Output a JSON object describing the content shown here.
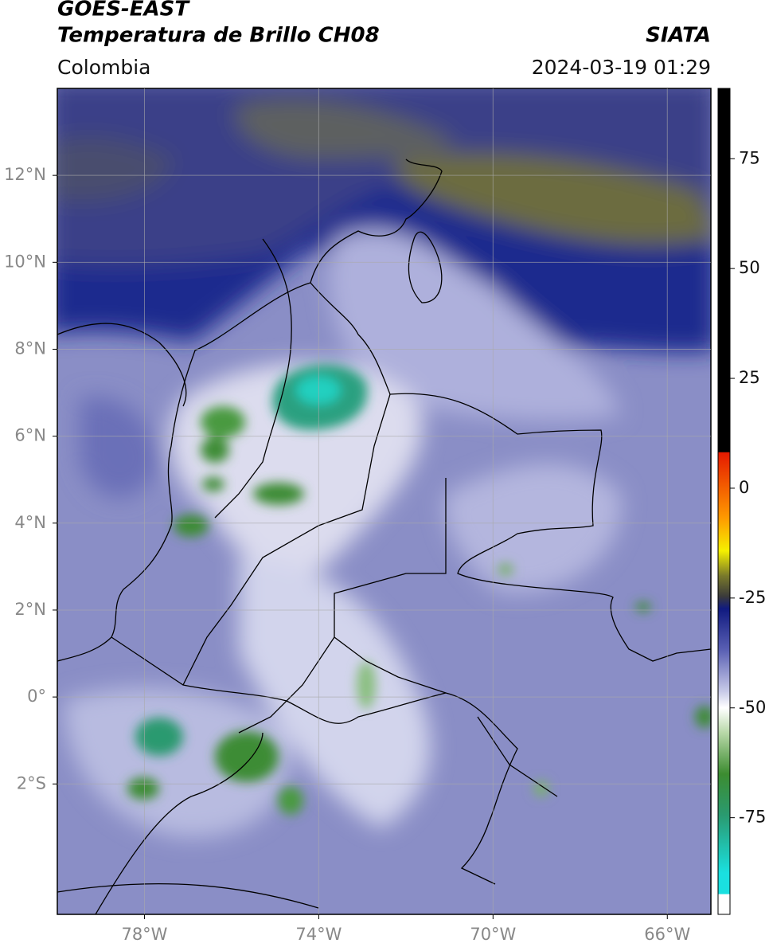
{
  "header": {
    "satellite": "GOES-EAST",
    "product": "Temperatura de Brillo CH08",
    "source": "SIATA",
    "region": "Colombia",
    "timestamp": "2024-03-19 01:29"
  },
  "map": {
    "xlim": [
      -80,
      -65
    ],
    "ylim": [
      -5,
      14
    ],
    "xticks": [
      {
        "value": -78,
        "label": "78°W"
      },
      {
        "value": -74,
        "label": "74°W"
      },
      {
        "value": -70,
        "label": "70°W"
      },
      {
        "value": -66,
        "label": "66°W"
      }
    ],
    "yticks": [
      {
        "value": 12,
        "label": "12°N"
      },
      {
        "value": 10,
        "label": "10°N"
      },
      {
        "value": 8,
        "label": "8°N"
      },
      {
        "value": 6,
        "label": "6°N"
      },
      {
        "value": 4,
        "label": "4°N"
      },
      {
        "value": 2,
        "label": "2°N"
      },
      {
        "value": 0,
        "label": "0°"
      },
      {
        "value": -2,
        "label": "2°S"
      }
    ]
  },
  "colorbar": {
    "lim": [
      -97,
      91
    ],
    "ticks": [
      75,
      50,
      25,
      0,
      -25,
      -50,
      -75
    ]
  }
}
